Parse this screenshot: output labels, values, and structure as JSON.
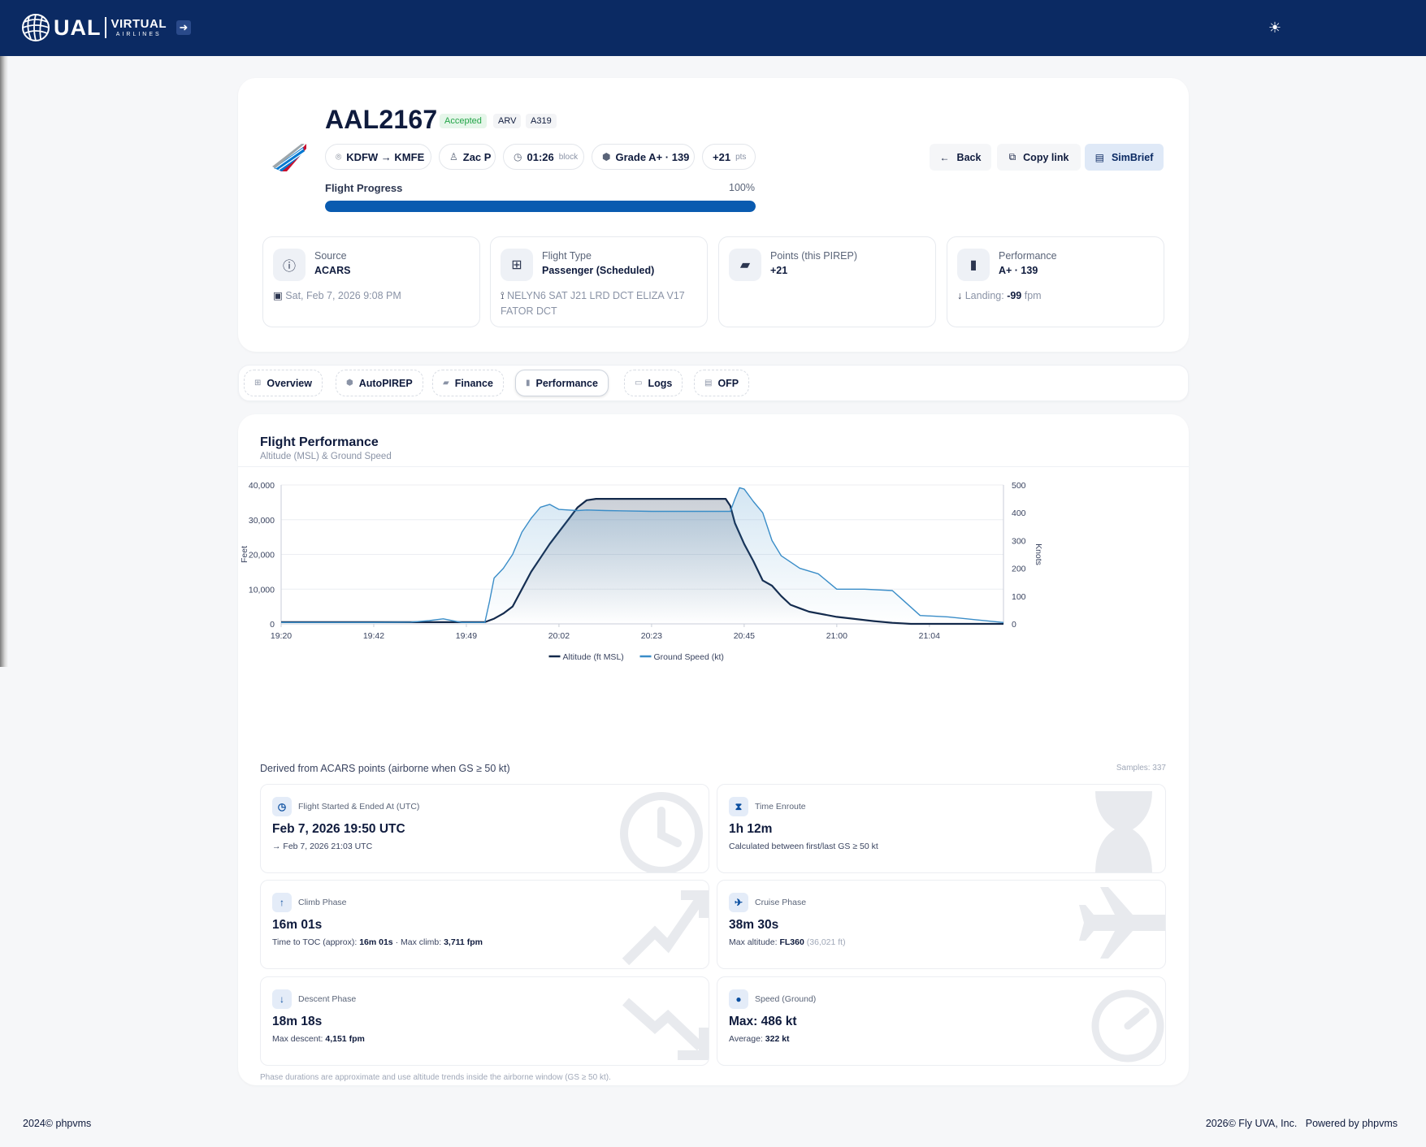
{
  "brand": {
    "name": "UAL",
    "line1": "VIRTUAL",
    "line2": "AIRLINES"
  },
  "header": {
    "login_icon": "login-arrow-icon",
    "theme_icon": "sun-icon"
  },
  "flight": {
    "id": "AAL2167",
    "status": "Accepted",
    "status_color": "#22a447",
    "tag1": "ARV",
    "tag2": "A319",
    "route": "KDFW → KMFE",
    "pilot": "Zac P",
    "block_time": "01:26",
    "block_label": "block",
    "grade": "Grade A+ · 139",
    "points": "+21",
    "points_label": "pts"
  },
  "actions": {
    "back": "Back",
    "copy_link": "Copy link",
    "simbrief": "SimBrief"
  },
  "progress": {
    "label": "Flight Progress",
    "percent_text": "100%",
    "value": 1.0,
    "color": "#0a5bb0"
  },
  "info": [
    {
      "label": "Source",
      "value": "ACARS",
      "icon": "alert-circle-icon",
      "sub": "Sat, Feb 7, 2026 9:08 PM",
      "sub_icon": "calendar-icon"
    },
    {
      "label": "Flight Type",
      "value": "Passenger (Scheduled)",
      "icon": "grid-icon",
      "sub": "NELYN6 SAT J21 LRD DCT ELIZA V17 FATOR DCT",
      "sub_icon": "route-icon"
    },
    {
      "label": "Points (this PIREP)",
      "value": "+21",
      "icon": "wallet-icon",
      "sub": "",
      "sub_icon": ""
    },
    {
      "label": "Performance",
      "value": "A+ · 139",
      "icon": "badge-icon",
      "sub_prefix": "Landing:",
      "sub_value": "-99",
      "sub_unit": "fpm",
      "sub_icon": "arrow-down-icon"
    }
  ],
  "tabs": [
    {
      "label": "Overview",
      "icon": "grid-icon"
    },
    {
      "label": "AutoPIREP",
      "icon": "shield-icon"
    },
    {
      "label": "Finance",
      "icon": "wallet-icon"
    },
    {
      "label": "Performance",
      "icon": "badge-icon",
      "active": true
    },
    {
      "label": "Logs",
      "icon": "message-icon"
    },
    {
      "label": "OFP",
      "icon": "document-icon"
    }
  ],
  "performance": {
    "title": "Flight Performance",
    "subtitle": "Altitude (MSL) & Ground Speed",
    "derived_note": "Derived from ACARS points (airborne when GS ≥ 50 kt)",
    "samples": "Samples: 337",
    "footnote": "Phase durations are approximate and use altitude trends inside the airborne window (GS ≥ 50 kt)."
  },
  "chart_data": {
    "type": "line",
    "x_tick_labels": [
      "19:20",
      "19:42",
      "19:49",
      "20:02",
      "20:23",
      "20:45",
      "21:00",
      "21:04"
    ],
    "y_left": {
      "label": "Feet",
      "ticks": [
        "40,000",
        "30,000",
        "20,000",
        "10,000",
        "0"
      ],
      "range": [
        0,
        40000
      ]
    },
    "y_right": {
      "label": "Knots",
      "ticks": [
        "500",
        "400",
        "300",
        "200",
        "100",
        "0"
      ],
      "range": [
        0,
        500
      ]
    },
    "grid": true,
    "legend_position": "bottom",
    "series": [
      {
        "name": "Altitude (ft MSL)",
        "axis": "left",
        "color": "#13294b",
        "x": [
          0,
          1,
          1.8,
          2.2,
          2.3,
          2.4,
          2.5,
          2.6,
          2.7,
          2.8,
          2.9,
          3.0,
          3.1,
          3.2,
          3.3,
          3.4,
          3.5,
          4.2,
          4.8,
          4.85,
          4.9,
          5.0,
          5.1,
          5.2,
          5.3,
          5.4,
          5.5,
          5.6,
          5.7,
          6.0,
          6.4,
          6.6,
          6.8,
          7.0,
          7.2,
          7.8
        ],
        "y": [
          500,
          500,
          500,
          500,
          1500,
          3000,
          5000,
          10000,
          15000,
          19000,
          23000,
          26500,
          30000,
          33500,
          35600,
          36000,
          36000,
          36000,
          36000,
          34000,
          29000,
          23000,
          18000,
          12500,
          11000,
          8000,
          5500,
          4500,
          3500,
          2000,
          800,
          300,
          0,
          0,
          0,
          0
        ]
      },
      {
        "name": "Ground Speed (kt)",
        "axis": "right",
        "color": "#3a8dc8",
        "x": [
          0,
          1,
          1.4,
          1.6,
          1.75,
          1.95,
          2.2,
          2.25,
          2.3,
          2.4,
          2.5,
          2.6,
          2.7,
          2.8,
          2.9,
          3.0,
          3.1,
          3.2,
          3.3,
          3.5,
          4.0,
          4.5,
          4.85,
          4.9,
          4.95,
          5.0,
          5.1,
          5.2,
          5.3,
          5.4,
          5.6,
          5.8,
          6.0,
          6.3,
          6.6,
          6.7,
          6.9,
          7.2,
          7.5,
          7.8
        ],
        "y": [
          5,
          5,
          6,
          12,
          18,
          5,
          5,
          80,
          165,
          200,
          250,
          330,
          380,
          420,
          430,
          412,
          410,
          408,
          410,
          408,
          405,
          405,
          405,
          450,
          490,
          485,
          440,
          400,
          300,
          245,
          200,
          180,
          125,
          125,
          120,
          90,
          30,
          25,
          15,
          5
        ]
      }
    ]
  },
  "stats": [
    {
      "label": "Flight Started & Ended At (UTC)",
      "value": "Feb 7, 2026 19:50 UTC",
      "sub": "→ Feb 7, 2026 21:03 UTC",
      "icon": "clock-icon",
      "bg": "clock"
    },
    {
      "label": "Time Enroute",
      "value": "1h 12m",
      "sub": "Calculated between first/last GS ≥ 50 kt",
      "icon": "hourglass-icon",
      "bg": "hourglass"
    },
    {
      "label": "Climb Phase",
      "value": "16m 01s",
      "sub_a": "Time to TOC (approx):",
      "sub_b": "16m 01s",
      "sub_c": "· Max climb:",
      "sub_d": "3,711 fpm",
      "icon": "arrow-up-icon",
      "bg": "trend-up"
    },
    {
      "label": "Cruise Phase",
      "value": "38m 30s",
      "sub_a": "Max altitude:",
      "sub_b": "FL360",
      "sub_c": "(36,021 ft)",
      "icon": "plane-icon",
      "bg": "plane"
    },
    {
      "label": "Descent Phase",
      "value": "18m 18s",
      "sub_a": "Max descent:",
      "sub_b": "4,151 fpm",
      "icon": "arrow-down-icon",
      "bg": "trend-down"
    },
    {
      "label": "Speed (Ground)",
      "value": "Max: 486 kt",
      "sub_a": "Average:",
      "sub_b": "322 kt",
      "icon": "gauge-icon",
      "bg": "gauge"
    }
  ],
  "footer": {
    "left": "2024©  phpvms",
    "right_a": "2026© Fly UVA, Inc.",
    "right_b": "Powered by phpvms"
  }
}
